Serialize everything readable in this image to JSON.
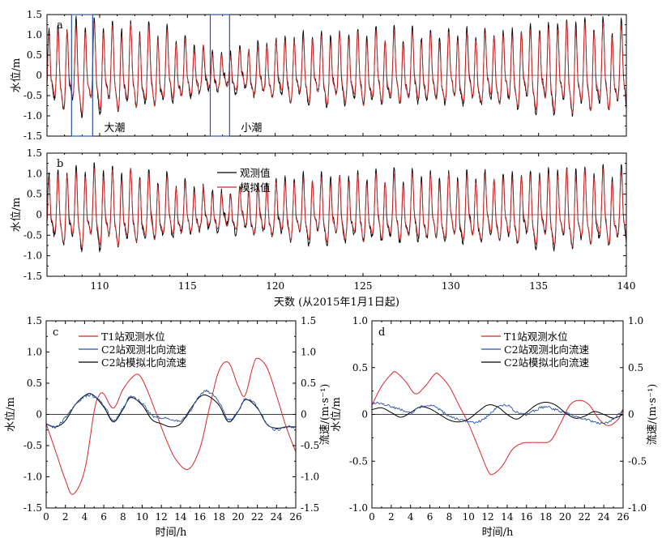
{
  "chart_data": [
    {
      "id": "a",
      "type": "line",
      "panel_label": "a",
      "ylabel": "水位/m",
      "xlim": [
        107,
        140
      ],
      "ylim": [
        -1.5,
        1.5
      ],
      "y_ticks": [
        "-1.5",
        "-1.0",
        "-0.5",
        "0",
        "0.5",
        "1.0",
        "1.5"
      ],
      "annotations": [
        {
          "text": "大潮",
          "x_range": [
            108.4,
            109.6
          ]
        },
        {
          "text": "小潮",
          "x_range": [
            116.3,
            117.4
          ]
        }
      ],
      "series": [
        {
          "role": "observed",
          "color": "#000000"
        },
        {
          "role": "simulated",
          "color": "#d62728"
        }
      ],
      "tide_envelope": {
        "day": [
          107,
          109,
          113,
          117,
          121,
          125,
          129,
          133,
          137,
          140
        ],
        "amp": [
          1.0,
          1.15,
          1.05,
          0.45,
          0.85,
          0.95,
          0.9,
          0.95,
          1.2,
          1.05
        ]
      }
    },
    {
      "id": "b",
      "type": "line",
      "panel_label": "b",
      "ylabel": "水位/m",
      "xlabel": "天数 (从2015年1月1日起)",
      "xlim": [
        107,
        140
      ],
      "ylim": [
        -1.5,
        1.5
      ],
      "x_ticks": [
        "110",
        "115",
        "120",
        "125",
        "130",
        "135",
        "140"
      ],
      "y_ticks": [
        "-1.5",
        "-1.0",
        "-0.5",
        "0",
        "0.5",
        "1.0",
        "1.5"
      ],
      "series": [
        {
          "name": "观测值",
          "color": "#000000"
        },
        {
          "name": "模拟值",
          "color": "#d62728"
        }
      ],
      "tide_envelope": {
        "day": [
          107,
          109,
          112,
          117,
          121,
          125,
          129,
          133,
          137,
          140
        ],
        "amp": [
          0.85,
          1.0,
          0.95,
          0.45,
          0.8,
          0.85,
          0.85,
          0.85,
          1.0,
          0.9
        ]
      }
    },
    {
      "id": "c",
      "type": "line",
      "panel_label": "c",
      "xlabel": "时间/h",
      "ylabel": "水位/m",
      "ylabel_right": "流速/(m·s⁻¹)",
      "xlim": [
        0,
        26
      ],
      "ylim": [
        -1.5,
        1.5
      ],
      "ylim_right": [
        -1.5,
        1.5
      ],
      "x_ticks": [
        "0",
        "2",
        "4",
        "6",
        "8",
        "10",
        "12",
        "14",
        "16",
        "18",
        "20",
        "22",
        "24",
        "26"
      ],
      "y_ticks": [
        "-1.5",
        "-1.0",
        "-0.5",
        "0",
        "0.5",
        "1.0",
        "1.5"
      ],
      "y_ticks_right": [
        "-1.5",
        "-1.0",
        "-0.5",
        "0",
        "0.5",
        "1.0",
        "1.5"
      ],
      "series": [
        {
          "name": "T1站观测水位",
          "color": "#d62728",
          "axis": "left",
          "x": [
            0,
            1,
            2,
            2.8,
            4,
            5,
            5.5,
            6,
            7,
            8,
            9,
            9.7,
            10.5,
            11.5,
            12.5,
            13.5,
            14.8,
            16,
            17,
            18,
            19,
            20,
            20.7,
            21.5,
            22,
            23,
            24,
            25,
            26
          ],
          "y": [
            -0.15,
            -0.6,
            -1.05,
            -1.28,
            -0.9,
            0.05,
            0.3,
            0.33,
            0.1,
            0.4,
            0.6,
            0.63,
            0.4,
            0.0,
            -0.4,
            -0.72,
            -0.88,
            -0.55,
            0.1,
            0.7,
            0.83,
            0.45,
            0.3,
            0.75,
            0.9,
            0.75,
            0.3,
            -0.2,
            -0.6
          ]
        },
        {
          "name": "C2站观测北向流速",
          "color": "#2855a6",
          "axis": "right",
          "noisy": true,
          "x": [
            0,
            1,
            2,
            3,
            4,
            4.8,
            6,
            7,
            8,
            8.8,
            10,
            11,
            12,
            13,
            14,
            15,
            16,
            16.8,
            18,
            19,
            20,
            20.8,
            22,
            23,
            24,
            25,
            26
          ],
          "y": [
            -0.15,
            -0.2,
            -0.05,
            0.15,
            0.28,
            0.3,
            0.15,
            -0.1,
            0.1,
            0.28,
            0.18,
            -0.02,
            -0.05,
            -0.08,
            -0.1,
            0.05,
            0.3,
            0.37,
            0.2,
            -0.08,
            0.05,
            0.25,
            0.12,
            -0.15,
            -0.25,
            -0.2,
            -0.2
          ]
        },
        {
          "name": "C2站模拟北向流速",
          "color": "#000000",
          "axis": "right",
          "x": [
            0,
            1,
            2,
            3,
            4,
            4.8,
            6,
            7,
            8,
            8.8,
            10,
            11,
            12,
            13,
            14,
            15,
            16,
            16.8,
            18,
            19,
            20,
            20.8,
            22,
            23,
            24,
            25,
            26
          ],
          "y": [
            -0.15,
            -0.2,
            -0.1,
            0.15,
            0.3,
            0.32,
            0.12,
            -0.12,
            0.08,
            0.27,
            0.15,
            -0.08,
            -0.15,
            -0.2,
            -0.15,
            0.08,
            0.28,
            0.3,
            0.15,
            -0.12,
            0.05,
            0.24,
            0.1,
            -0.16,
            -0.22,
            -0.2,
            -0.2
          ]
        }
      ]
    },
    {
      "id": "d",
      "type": "line",
      "panel_label": "d",
      "xlabel": "时间/h",
      "ylabel": "水位/m",
      "ylabel_right": "流速/(m·s⁻¹)",
      "xlim": [
        0,
        26
      ],
      "ylim": [
        -1.0,
        1.0
      ],
      "ylim_right": [
        -1.0,
        1.0
      ],
      "x_ticks": [
        "0",
        "2",
        "4",
        "6",
        "8",
        "10",
        "12",
        "14",
        "16",
        "18",
        "20",
        "22",
        "24",
        "26"
      ],
      "y_ticks": [
        "-1.0",
        "-0.5",
        "0",
        "0.5",
        "1.0"
      ],
      "y_ticks_right": [
        "-1.0",
        "-0.5",
        "0",
        "0.5",
        "1.0"
      ],
      "series": [
        {
          "name": "T1站观测水位",
          "color": "#d62728",
          "axis": "left",
          "x": [
            0,
            1,
            2,
            2.5,
            3.5,
            4.5,
            5.5,
            6.5,
            7,
            8,
            9,
            10,
            11,
            12,
            12.5,
            13.5,
            14.5,
            15.5,
            16.5,
            17.5,
            18.5,
            19.5,
            20.5,
            21.5,
            22.5,
            23.5,
            24.5,
            25.5,
            26
          ],
          "y": [
            0.1,
            0.3,
            0.43,
            0.45,
            0.35,
            0.22,
            0.3,
            0.43,
            0.42,
            0.3,
            0.1,
            -0.1,
            -0.35,
            -0.6,
            -0.64,
            -0.55,
            -0.38,
            -0.31,
            -0.3,
            -0.3,
            -0.28,
            -0.1,
            0.1,
            0.15,
            0.1,
            -0.05,
            -0.12,
            -0.05,
            0.05
          ]
        },
        {
          "name": "C2站观测北向流速",
          "color": "#2855a6",
          "axis": "right",
          "noisy": true,
          "x": [
            0,
            1,
            2,
            3,
            4,
            5,
            6,
            7,
            8,
            9,
            10,
            11,
            12,
            13,
            14,
            15,
            16,
            17,
            18,
            19,
            20,
            21,
            22,
            23,
            24,
            25,
            26
          ],
          "y": [
            0.12,
            0.12,
            0.08,
            0.05,
            0.02,
            0.08,
            0.1,
            0.05,
            -0.02,
            -0.05,
            -0.08,
            -0.08,
            -0.02,
            0.08,
            0.1,
            0.02,
            0.0,
            0.05,
            0.08,
            0.05,
            0.02,
            -0.02,
            -0.05,
            -0.08,
            -0.1,
            -0.05,
            0.05
          ]
        },
        {
          "name": "C2站模拟北向流速",
          "color": "#000000",
          "axis": "right",
          "x": [
            0,
            1,
            2,
            3,
            4,
            5,
            6,
            7,
            8,
            9,
            10,
            11,
            12,
            13,
            14,
            15,
            16,
            17,
            18,
            19,
            20,
            21,
            22,
            23,
            24,
            25,
            26
          ],
          "y": [
            0.05,
            0.07,
            0.02,
            -0.03,
            0.02,
            0.08,
            0.06,
            0.0,
            -0.06,
            -0.08,
            -0.05,
            0.03,
            0.1,
            0.08,
            0.0,
            -0.05,
            0.02,
            0.1,
            0.13,
            0.1,
            0.02,
            -0.04,
            -0.02,
            0.03,
            0.0,
            -0.04,
            0.0
          ]
        }
      ]
    }
  ]
}
